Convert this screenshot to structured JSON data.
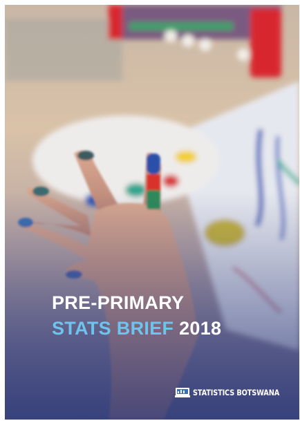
{
  "cover": {
    "title_line1": "PRE-PRIMARY",
    "title_line2_highlight": "STATS BRIEF",
    "year": "2018",
    "publisher": "STATISTICS BOTSWANA"
  }
}
